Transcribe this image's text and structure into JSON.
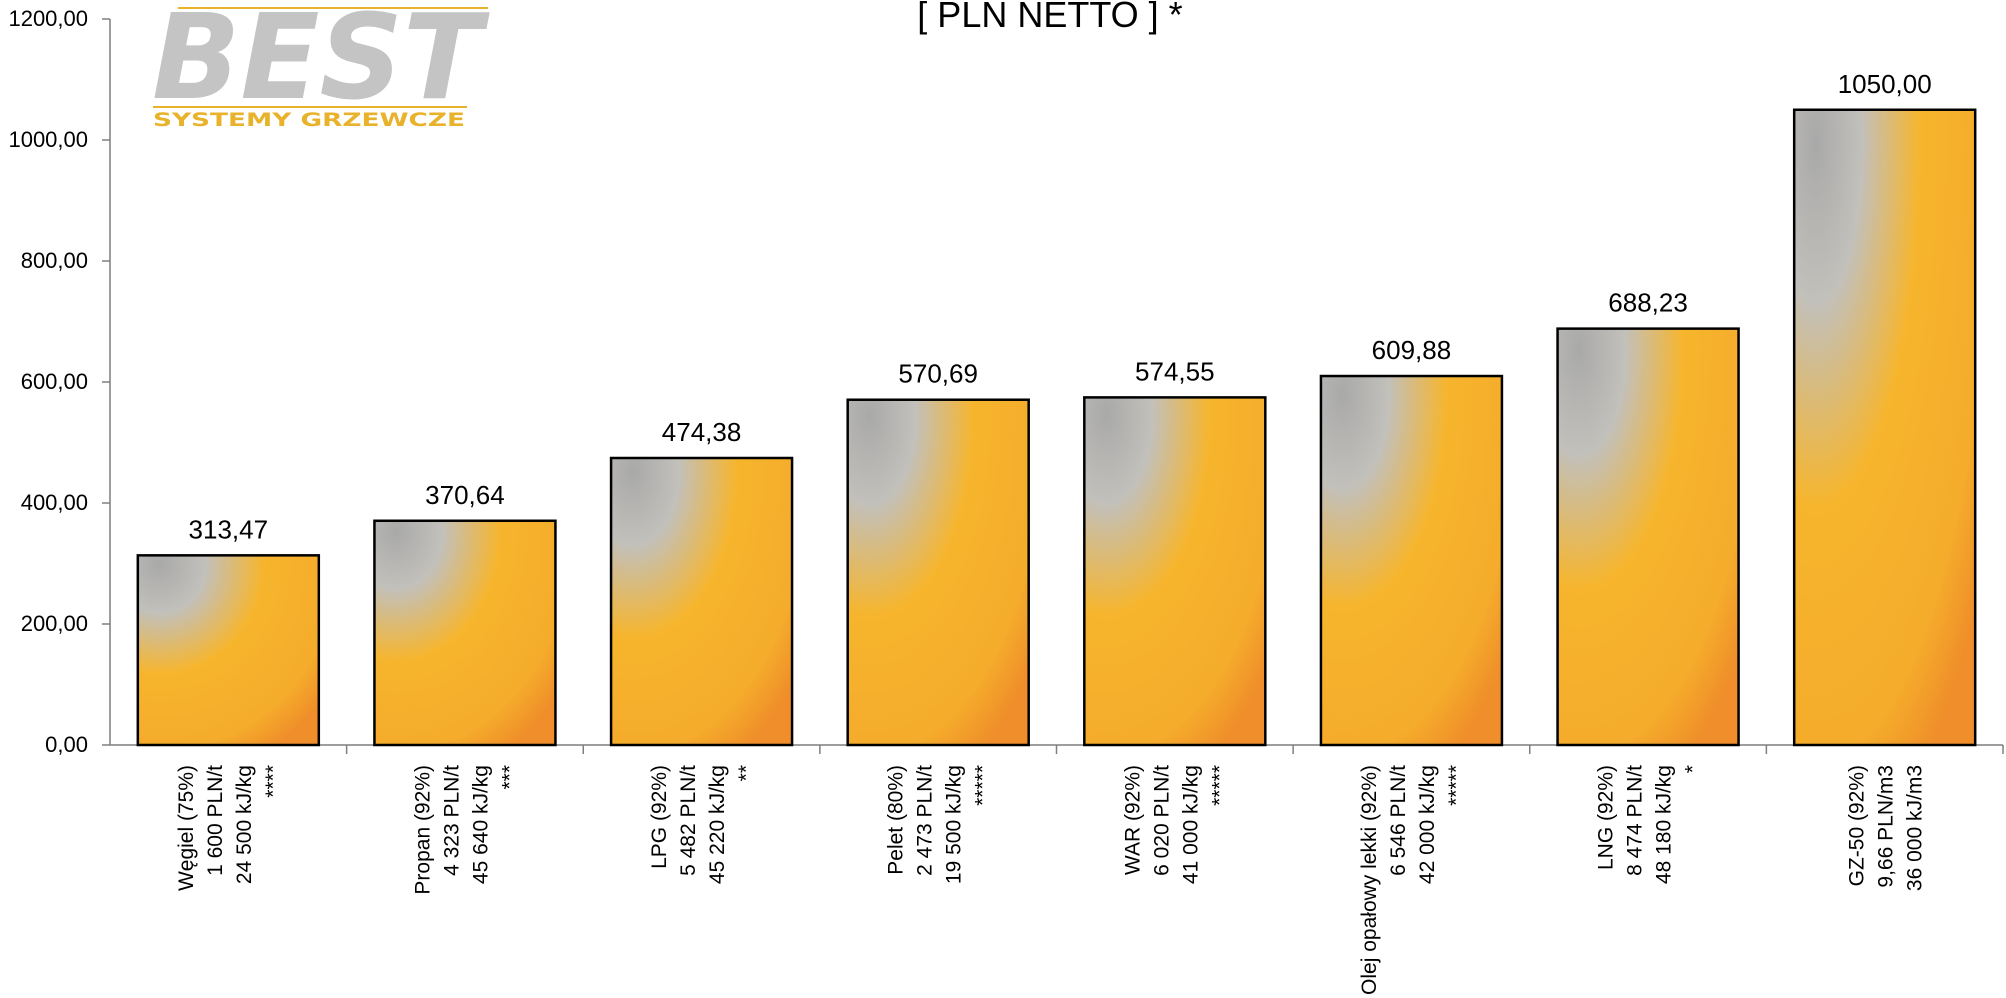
{
  "logo": {
    "word": "BEST",
    "subtitle": "SYSTEMY GRZEWCZE",
    "colors": {
      "word": "#c4c4c4",
      "accent": "#e9b22b"
    }
  },
  "chart_data": {
    "type": "bar",
    "title": "[ PLN NETTO ] *",
    "xlabel": "",
    "ylabel": "",
    "ylim": [
      0,
      1200
    ],
    "yticks": [
      "0,00",
      "200,00",
      "400,00",
      "600,00",
      "800,00",
      "1000,00",
      "1200,00"
    ],
    "grid": false,
    "categories": [
      [
        "Węgiel (75%)",
        "1 600 PLN/t",
        "24 500 kJ/kg",
        "****"
      ],
      [
        "Propan (92%)",
        "4 323 PLN/t",
        "45 640 kJ/kg",
        "***"
      ],
      [
        "LPG (92%)",
        "5 482 PLN/t",
        "45 220 kJ/kg",
        "**"
      ],
      [
        "Pelet (80%)",
        "2 473 PLN/t",
        "19 500 kJ/kg",
        "*****"
      ],
      [
        "WAR (92%)",
        "6 020 PLN/t",
        "41 000 kJ/kg",
        "*****"
      ],
      [
        "Olej opałowy lekki (92%)",
        "6 546 PLN/t",
        "42 000 kJ/kg",
        "*****"
      ],
      [
        "LNG (92%)",
        "8 474 PLN/t",
        "48 180 kJ/kg",
        "*"
      ],
      [
        "GZ-50 (92%)",
        "9,66 PLN/m3",
        "36 000 kJ/m3"
      ]
    ],
    "values": [
      313.47,
      370.64,
      474.38,
      570.69,
      574.55,
      609.88,
      688.23,
      1050.0
    ],
    "value_labels": [
      "313,47",
      "370,64",
      "474,38",
      "570,69",
      "574,55",
      "609,88",
      "688,23",
      "1050,00"
    ],
    "colors": {
      "bar_top": "#b3b3b3",
      "bar_bottom": "#f6b22e",
      "bar_corner": "#ee8f2a",
      "outline": "#000000"
    }
  }
}
